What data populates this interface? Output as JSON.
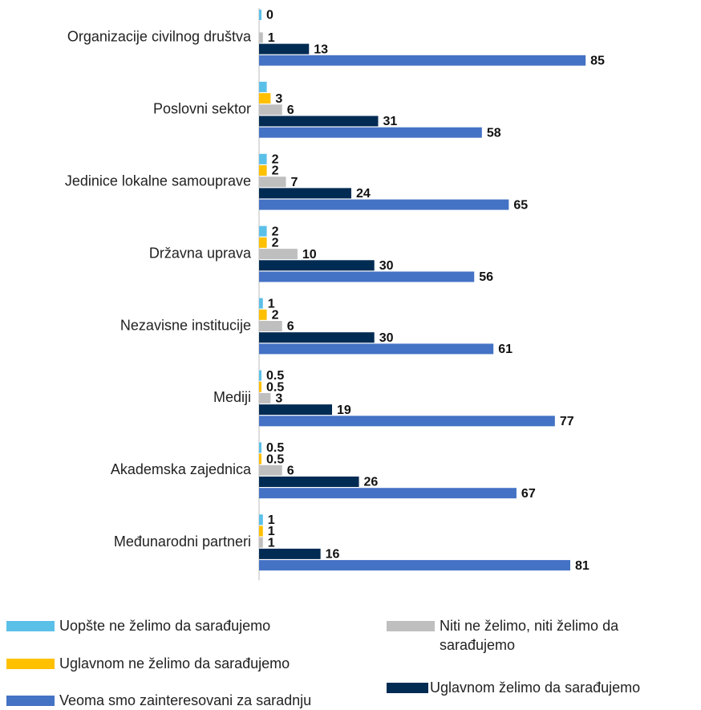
{
  "chart_data": {
    "type": "bar",
    "orientation": "horizontal",
    "categories": [
      "Organizacije civilnog društva",
      "Poslovni sektor",
      "Jedinice lokalne samouprave",
      "Državna uprava",
      "Nezavisne institucije",
      "Mediji",
      "Akademska zajednica",
      "Međunarodni partneri"
    ],
    "xlim": [
      0,
      100
    ],
    "series": [
      {
        "name": "Uopšte ne želimo da sarađujemo",
        "color": "#5bc0e8",
        "values": [
          0,
          2,
          2,
          2,
          1,
          0.5,
          0.5,
          1
        ],
        "value_labels": [
          "0",
          null,
          "2",
          "2",
          "1",
          "0.5",
          "0.5",
          "1"
        ]
      },
      {
        "name": "Uglavnom ne želimo da sarađujemo",
        "color": "#ffc000",
        "values": [
          null,
          3,
          2,
          2,
          2,
          0.5,
          0.5,
          1
        ]
      },
      {
        "name": "Niti ne želimo, niti želimo da sarađujemo",
        "color": "#bfbfbf",
        "values": [
          1,
          6,
          7,
          10,
          6,
          3,
          6,
          1
        ]
      },
      {
        "name": "Uglavnom želimo da sarađujemo",
        "color": "#002b53",
        "values": [
          13,
          31,
          24,
          30,
          30,
          19,
          26,
          16
        ]
      },
      {
        "name": "Veoma smo zainteresovani za saradnju",
        "color": "#4472c4",
        "values": [
          85,
          58,
          65,
          56,
          61,
          77,
          67,
          81
        ]
      }
    ]
  }
}
